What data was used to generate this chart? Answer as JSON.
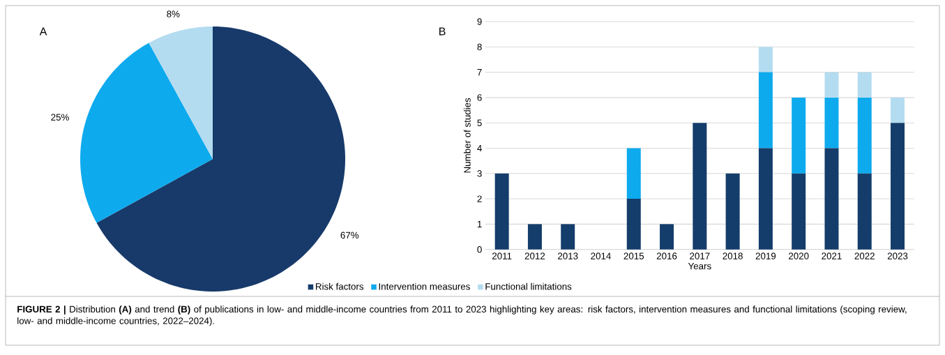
{
  "chart_data": [
    {
      "type": "pie",
      "title": "A",
      "categories": [
        null,
        null,
        null
      ],
      "values": [
        67,
        25,
        8
      ],
      "colors": [
        "#173a6a",
        "#0eaaee",
        "#b4dcf0"
      ],
      "value_labels": [
        "67%",
        "25%",
        "8%"
      ]
    },
    {
      "type": "bar",
      "title": "B",
      "stacked": true,
      "xlabel": "Years",
      "ylabel": "Number of studies",
      "categories": [
        "2011",
        "2012",
        "2013",
        "2014",
        "2015",
        "2016",
        "2017",
        "2018",
        "2019",
        "2020",
        "2021",
        "2022",
        "2023"
      ],
      "series": [
        {
          "name": "Risk factors",
          "color": "#143d6b",
          "values": [
            3,
            1,
            1,
            0,
            2,
            1,
            5,
            3,
            4,
            3,
            4,
            3,
            5
          ]
        },
        {
          "name": "Intervention measures",
          "color": "#0eaaee",
          "values": [
            0,
            0,
            0,
            0,
            2,
            0,
            0,
            0,
            3,
            3,
            2,
            3,
            0
          ]
        },
        {
          "name": "Functional limitations",
          "color": "#b4dcf0",
          "values": [
            0,
            0,
            0,
            0,
            0,
            0,
            0,
            0,
            1,
            0,
            1,
            1,
            1
          ]
        }
      ],
      "ylim": [
        0,
        9
      ],
      "yticks": [
        0,
        1,
        2,
        3,
        4,
        5,
        6,
        7,
        8,
        9
      ],
      "grid": "y",
      "legend": "bottom",
      "annotations": [
        "**FIGURE 2 |** Distribution **(A)** and trend **(B)** of publications in low- and middle-income countries from 2011 to 2023 highlighting key areas: risk factors, intervention measures and functional limitations (scoping review, low- and middle-income countries, 2022–2024)."
      ]
    }
  ]
}
